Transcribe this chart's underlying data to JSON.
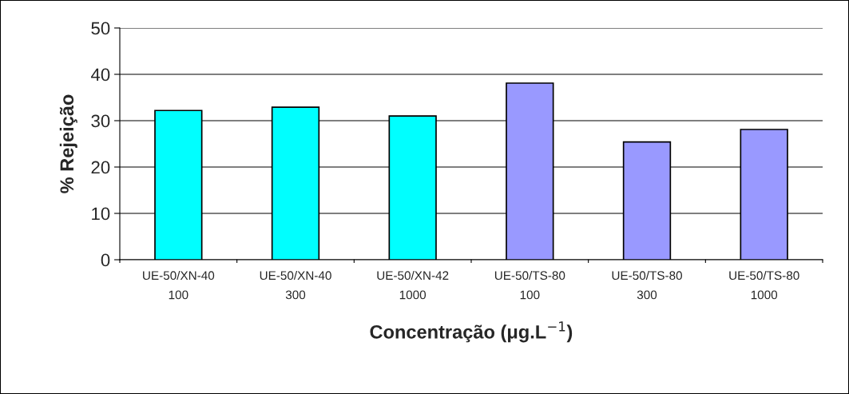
{
  "chart_data": {
    "type": "bar",
    "xlabel": "Concentração (μg.L$^{−1}$)",
    "ylabel": "% Rejeição",
    "categories": [
      "UE-50/XN-40\n100",
      "UE-50/XN-40\n300",
      "UE-50/XN-42\n1000",
      "UE-50/TS-80\n100",
      "UE-50/TS-80\n300",
      "UE-50/TS-80\n1000"
    ],
    "values": [
      32.2,
      32.9,
      31.0,
      38.1,
      25.4,
      28.1
    ],
    "colors": [
      "#00ffff",
      "#00ffff",
      "#00ffff",
      "#9999ff",
      "#9999ff",
      "#9999ff"
    ],
    "ylim": [
      0,
      50
    ],
    "yticks": [
      0,
      10,
      20,
      30,
      40,
      50
    ],
    "grid": "y"
  }
}
